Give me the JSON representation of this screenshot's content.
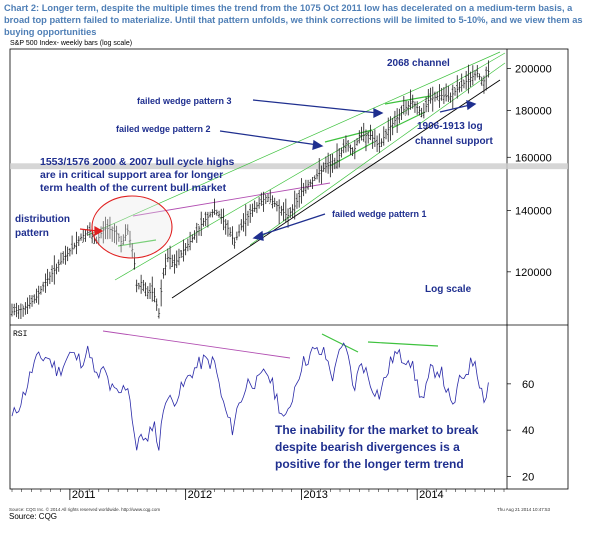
{
  "caption": "Chart 2: Longer term, despite the multiple times the trend from the 1075 Oct 2011 low has decelerated on a medium-term basis, a broad top pattern failed to materialize. Until that pattern unfolds, we think corrections will be limited to 5-10%, and we view them as buying opportunities",
  "plot_title": "S&P 500 Index- weekly bars (log scale)",
  "footer_left": "Source: CQG Inc. © 2014 All rights reserved worldwide. http://www.cqg.com",
  "footer_right": "Thu Aug 21 2014 10:47:53",
  "source": "Source: CQG",
  "colors": {
    "caption": "#4f7fb6",
    "annotation": "#1f2f8f",
    "price": "#1a1a1a",
    "rsi": "#2a2aa8",
    "support_band": "#c8c8c8",
    "channel": "#3ec23e",
    "red": "#e02020",
    "magenta": "#b24fb2"
  },
  "chart_data": [
    {
      "type": "bar",
      "title": "S&P 500 Index- weekly bars (log scale)",
      "scale": "log",
      "yticks": [
        {
          "value": 1200,
          "label": "120000"
        },
        {
          "value": 1400,
          "label": "140000"
        },
        {
          "value": 1600,
          "label": "160000"
        },
        {
          "value": 1800,
          "label": "180000"
        },
        {
          "value": 2000,
          "label": "200000"
        }
      ],
      "ylim": [
        1050,
        2100
      ],
      "xlim": [
        2010.5,
        2014.75
      ],
      "x_ticks": [
        {
          "value": 2011,
          "label": "2011"
        },
        {
          "value": 2012,
          "label": "2012"
        },
        {
          "value": 2013,
          "label": "2013"
        },
        {
          "value": 2014,
          "label": "2014"
        }
      ],
      "series": [
        {
          "points": [
            [
              2010.5,
              1085
            ],
            [
              2010.6,
              1095
            ],
            [
              2010.7,
              1120
            ],
            [
              2010.8,
              1175
            ],
            [
              2010.9,
              1220
            ],
            [
              2011.0,
              1265
            ],
            [
              2011.1,
              1310
            ],
            [
              2011.17,
              1330
            ],
            [
              2011.22,
              1290
            ],
            [
              2011.3,
              1340
            ],
            [
              2011.35,
              1335
            ],
            [
              2011.4,
              1325
            ],
            [
              2011.45,
              1290
            ],
            [
              2011.5,
              1330
            ],
            [
              2011.55,
              1250
            ],
            [
              2011.58,
              1150
            ],
            [
              2011.62,
              1170
            ],
            [
              2011.67,
              1140
            ],
            [
              2011.72,
              1140
            ],
            [
              2011.77,
              1080
            ],
            [
              2011.8,
              1180
            ],
            [
              2011.85,
              1250
            ],
            [
              2011.9,
              1220
            ],
            [
              2011.97,
              1260
            ],
            [
              2012.05,
              1300
            ],
            [
              2012.15,
              1360
            ],
            [
              2012.25,
              1400
            ],
            [
              2012.3,
              1380
            ],
            [
              2012.38,
              1330
            ],
            [
              2012.42,
              1290
            ],
            [
              2012.5,
              1360
            ],
            [
              2012.6,
              1410
            ],
            [
              2012.7,
              1450
            ],
            [
              2012.78,
              1420
            ],
            [
              2012.88,
              1380
            ],
            [
              2012.95,
              1420
            ],
            [
              2013.0,
              1470
            ],
            [
              2013.1,
              1510
            ],
            [
              2013.2,
              1560
            ],
            [
              2013.3,
              1580
            ],
            [
              2013.38,
              1660
            ],
            [
              2013.45,
              1620
            ],
            [
              2013.5,
              1690
            ],
            [
              2013.6,
              1690
            ],
            [
              2013.67,
              1640
            ],
            [
              2013.73,
              1700
            ],
            [
              2013.8,
              1750
            ],
            [
              2013.88,
              1800
            ],
            [
              2013.96,
              1840
            ],
            [
              2014.05,
              1780
            ],
            [
              2014.1,
              1850
            ],
            [
              2014.2,
              1870
            ],
            [
              2014.28,
              1860
            ],
            [
              2014.35,
              1900
            ],
            [
              2014.45,
              1950
            ],
            [
              2014.52,
              1975
            ],
            [
              2014.57,
              1930
            ],
            [
              2014.62,
              1990
            ]
          ]
        }
      ],
      "annotations": [
        "2068 channel",
        "failed wedge pattern 3",
        "failed wedge pattern 2",
        "1906-1913 log channel support",
        "1553/1576 2000 & 2007 bull cycle highs are in critical support area for longer term health of the current bull market",
        "distribution pattern",
        "failed wedge pattern 1",
        "Log scale"
      ],
      "support_band": [
        1553,
        1576
      ],
      "grid": false
    },
    {
      "type": "line",
      "title": "RSI",
      "ylim": [
        15,
        85
      ],
      "yticks": [
        {
          "value": 20,
          "label": "20"
        },
        {
          "value": 40,
          "label": "40"
        },
        {
          "value": 60,
          "label": "60"
        }
      ],
      "series": [
        {
          "points": [
            [
              2010.5,
              45
            ],
            [
              2010.6,
              55
            ],
            [
              2010.7,
              70
            ],
            [
              2010.8,
              72
            ],
            [
              2010.9,
              65
            ],
            [
              2011.0,
              73
            ],
            [
              2011.1,
              70
            ],
            [
              2011.17,
              75
            ],
            [
              2011.22,
              62
            ],
            [
              2011.3,
              66
            ],
            [
              2011.35,
              58
            ],
            [
              2011.42,
              55
            ],
            [
              2011.5,
              60
            ],
            [
              2011.55,
              42
            ],
            [
              2011.58,
              30
            ],
            [
              2011.62,
              40
            ],
            [
              2011.67,
              33
            ],
            [
              2011.72,
              45
            ],
            [
              2011.77,
              32
            ],
            [
              2011.82,
              55
            ],
            [
              2011.88,
              52
            ],
            [
              2011.97,
              58
            ],
            [
              2012.05,
              65
            ],
            [
              2012.15,
              70
            ],
            [
              2012.25,
              69
            ],
            [
              2012.32,
              52
            ],
            [
              2012.4,
              40
            ],
            [
              2012.45,
              50
            ],
            [
              2012.55,
              62
            ],
            [
              2012.62,
              60
            ],
            [
              2012.7,
              66
            ],
            [
              2012.78,
              55
            ],
            [
              2012.86,
              43
            ],
            [
              2012.95,
              60
            ],
            [
              2013.0,
              68
            ],
            [
              2013.1,
              74
            ],
            [
              2013.2,
              73
            ],
            [
              2013.28,
              62
            ],
            [
              2013.33,
              78
            ],
            [
              2013.4,
              72
            ],
            [
              2013.45,
              57
            ],
            [
              2013.52,
              70
            ],
            [
              2013.6,
              60
            ],
            [
              2013.67,
              55
            ],
            [
              2013.72,
              62
            ],
            [
              2013.8,
              73
            ],
            [
              2013.88,
              71
            ],
            [
              2013.93,
              72
            ],
            [
              2014.0,
              60
            ],
            [
              2014.05,
              52
            ],
            [
              2014.12,
              66
            ],
            [
              2014.2,
              66
            ],
            [
              2014.27,
              55
            ],
            [
              2014.3,
              48
            ],
            [
              2014.36,
              60
            ],
            [
              2014.43,
              66
            ],
            [
              2014.5,
              71
            ],
            [
              2014.55,
              58
            ],
            [
              2014.59,
              53
            ],
            [
              2014.62,
              62
            ]
          ]
        }
      ],
      "annotations": [
        "The inability for the market to break despite bearish divergences is a positive for the longer term trend"
      ],
      "grid": false
    }
  ]
}
